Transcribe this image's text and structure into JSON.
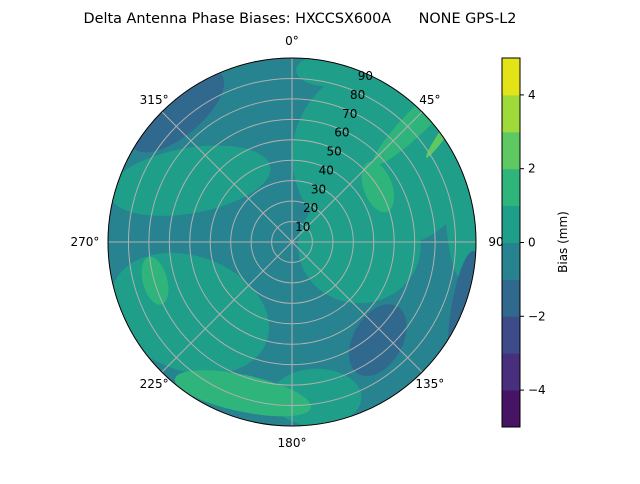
{
  "chart_data": {
    "type": "heatmap",
    "projection": "polar",
    "title": "Delta Antenna Phase Biases: HXCCSX600A      NONE GPS-L2",
    "angular_ticks": [
      "0°",
      "45°",
      "90°",
      "135°",
      "180°",
      "225°",
      "270°",
      "315°"
    ],
    "angular_tick_values": [
      0,
      45,
      90,
      135,
      180,
      225,
      270,
      315
    ],
    "radial_ticks": [
      "10",
      "20",
      "30",
      "40",
      "50",
      "60",
      "70",
      "80",
      "90"
    ],
    "radial_tick_values": [
      10,
      20,
      30,
      40,
      50,
      60,
      70,
      80,
      90
    ],
    "rlim": [
      0,
      90
    ],
    "grid": true,
    "colorbar": {
      "label": "Bias (mm)",
      "range": [
        -5,
        5
      ],
      "levels": [
        -5,
        -4,
        -3,
        -2,
        -1,
        0,
        1,
        2,
        3,
        4,
        5
      ],
      "ticks": [
        "−4",
        "−2",
        "0",
        "2",
        "4"
      ],
      "tick_values": [
        -4,
        -2,
        0,
        2,
        4
      ],
      "colors": [
        "#471365",
        "#482f7d",
        "#3e4b89",
        "#31688e",
        "#26838f",
        "#1f9e89",
        "#2fb47c",
        "#5ec962",
        "#9fda3a",
        "#e2e418"
      ],
      "placement": "right"
    },
    "background_band": -1,
    "regions": [
      {
        "band": 0,
        "east": 45,
        "north": 42,
        "re": 45,
        "rn": 45,
        "rot": 0
      },
      {
        "band": 0,
        "east": 18,
        "north": 84,
        "re": 16,
        "rn": 8,
        "rot": 0
      },
      {
        "band": 0,
        "east": 85,
        "north": 20,
        "re": 10,
        "rn": 40,
        "rot": 0
      },
      {
        "band": 0,
        "east": -50,
        "north": 30,
        "re": 40,
        "rn": 16,
        "rot": -10
      },
      {
        "band": 0,
        "east": 33,
        "north": -2,
        "re": 30,
        "rn": 28,
        "rot": 0
      },
      {
        "band": 0,
        "east": -50,
        "north": -35,
        "re": 40,
        "rn": 28,
        "rot": 20
      },
      {
        "band": 0,
        "east": 12,
        "north": -76,
        "re": 22,
        "rn": 14,
        "rot": 0
      },
      {
        "band": 1,
        "east": 42,
        "north": 27,
        "re": 7,
        "rn": 13,
        "rot": -20
      },
      {
        "band": 1,
        "east": -67,
        "north": -19,
        "re": 6,
        "rn": 12,
        "rot": -15
      },
      {
        "band": 1,
        "east": -24,
        "north": -74,
        "re": 34,
        "rn": 9,
        "rot": 12
      },
      {
        "band": 1,
        "east": 64,
        "north": 62,
        "re": 6,
        "rn": 34,
        "rot": 45
      },
      {
        "band": 2,
        "east": 76,
        "north": 56,
        "re": 2,
        "rn": 18,
        "rot": 35
      },
      {
        "band": -2,
        "east": -56,
        "north": 64,
        "re": 28,
        "rn": 12,
        "rot": -40
      },
      {
        "band": -2,
        "east": 42,
        "north": -48,
        "re": 12,
        "rn": 19,
        "rot": 30
      },
      {
        "band": -2,
        "east": 84,
        "north": -32,
        "re": 6,
        "rn": 28,
        "rot": 10
      }
    ]
  }
}
